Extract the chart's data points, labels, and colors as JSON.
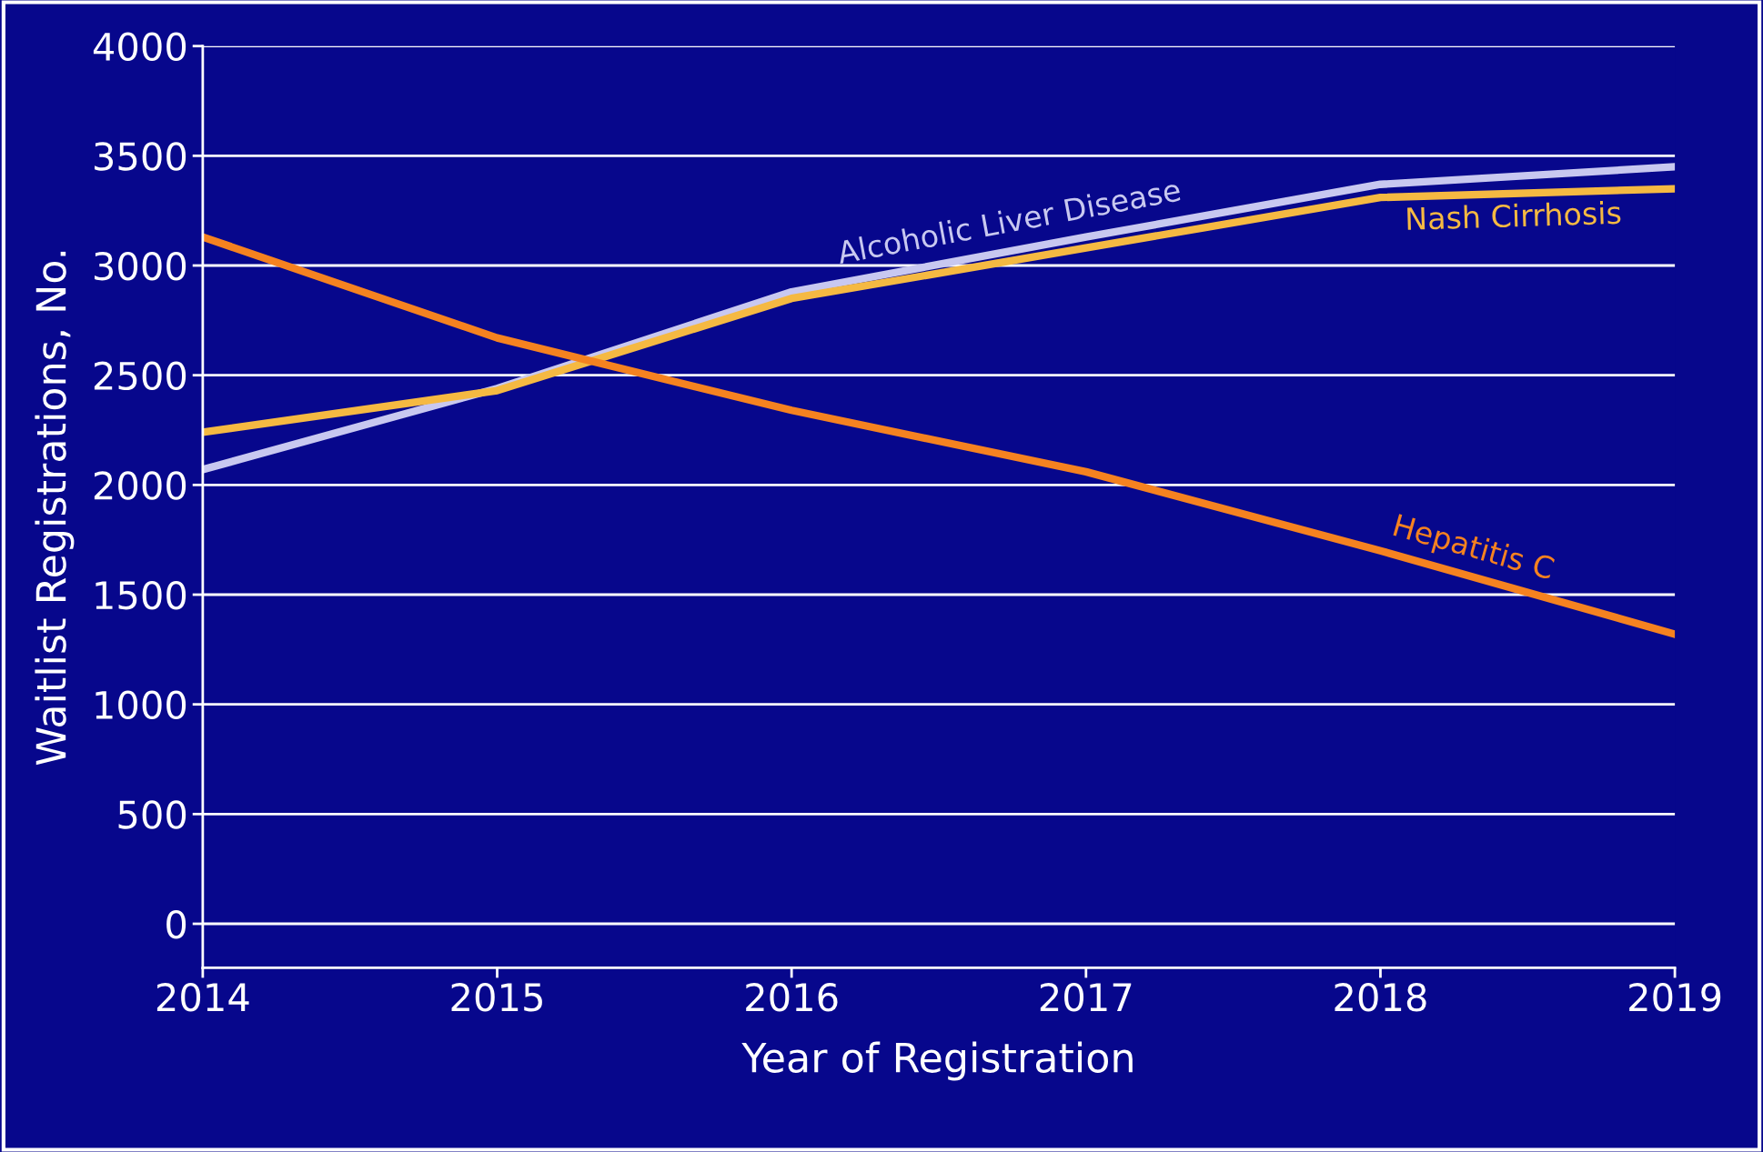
{
  "chart_data": {
    "type": "line",
    "xlabel": "Year of Registration",
    "ylabel": "Waitlist Registrations, No.",
    "x": [
      2014,
      2015,
      2016,
      2017,
      2018,
      2019
    ],
    "series": [
      {
        "name": "Alcoholic Liver Disease",
        "color": "#c8c8f0",
        "values": [
          2070,
          2440,
          2880,
          3130,
          3370,
          3450
        ]
      },
      {
        "name": "Nash Cirrhosis",
        "color": "#f5b942",
        "values": [
          2240,
          2430,
          2850,
          3080,
          3310,
          3350
        ]
      },
      {
        "name": "Hepatitis C",
        "color": "#f58220",
        "values": [
          3130,
          2670,
          2340,
          2060,
          1700,
          1320
        ]
      }
    ],
    "xlim": [
      2014,
      2019
    ],
    "xticks": [
      2014,
      2015,
      2016,
      2017,
      2018,
      2019
    ],
    "ylim": [
      -200,
      4000
    ],
    "yticks": [
      0,
      500,
      1000,
      1500,
      2000,
      2500,
      3000,
      3500,
      4000
    ],
    "grid": "y",
    "legend": false,
    "marker": "none",
    "line_style": "solid"
  }
}
